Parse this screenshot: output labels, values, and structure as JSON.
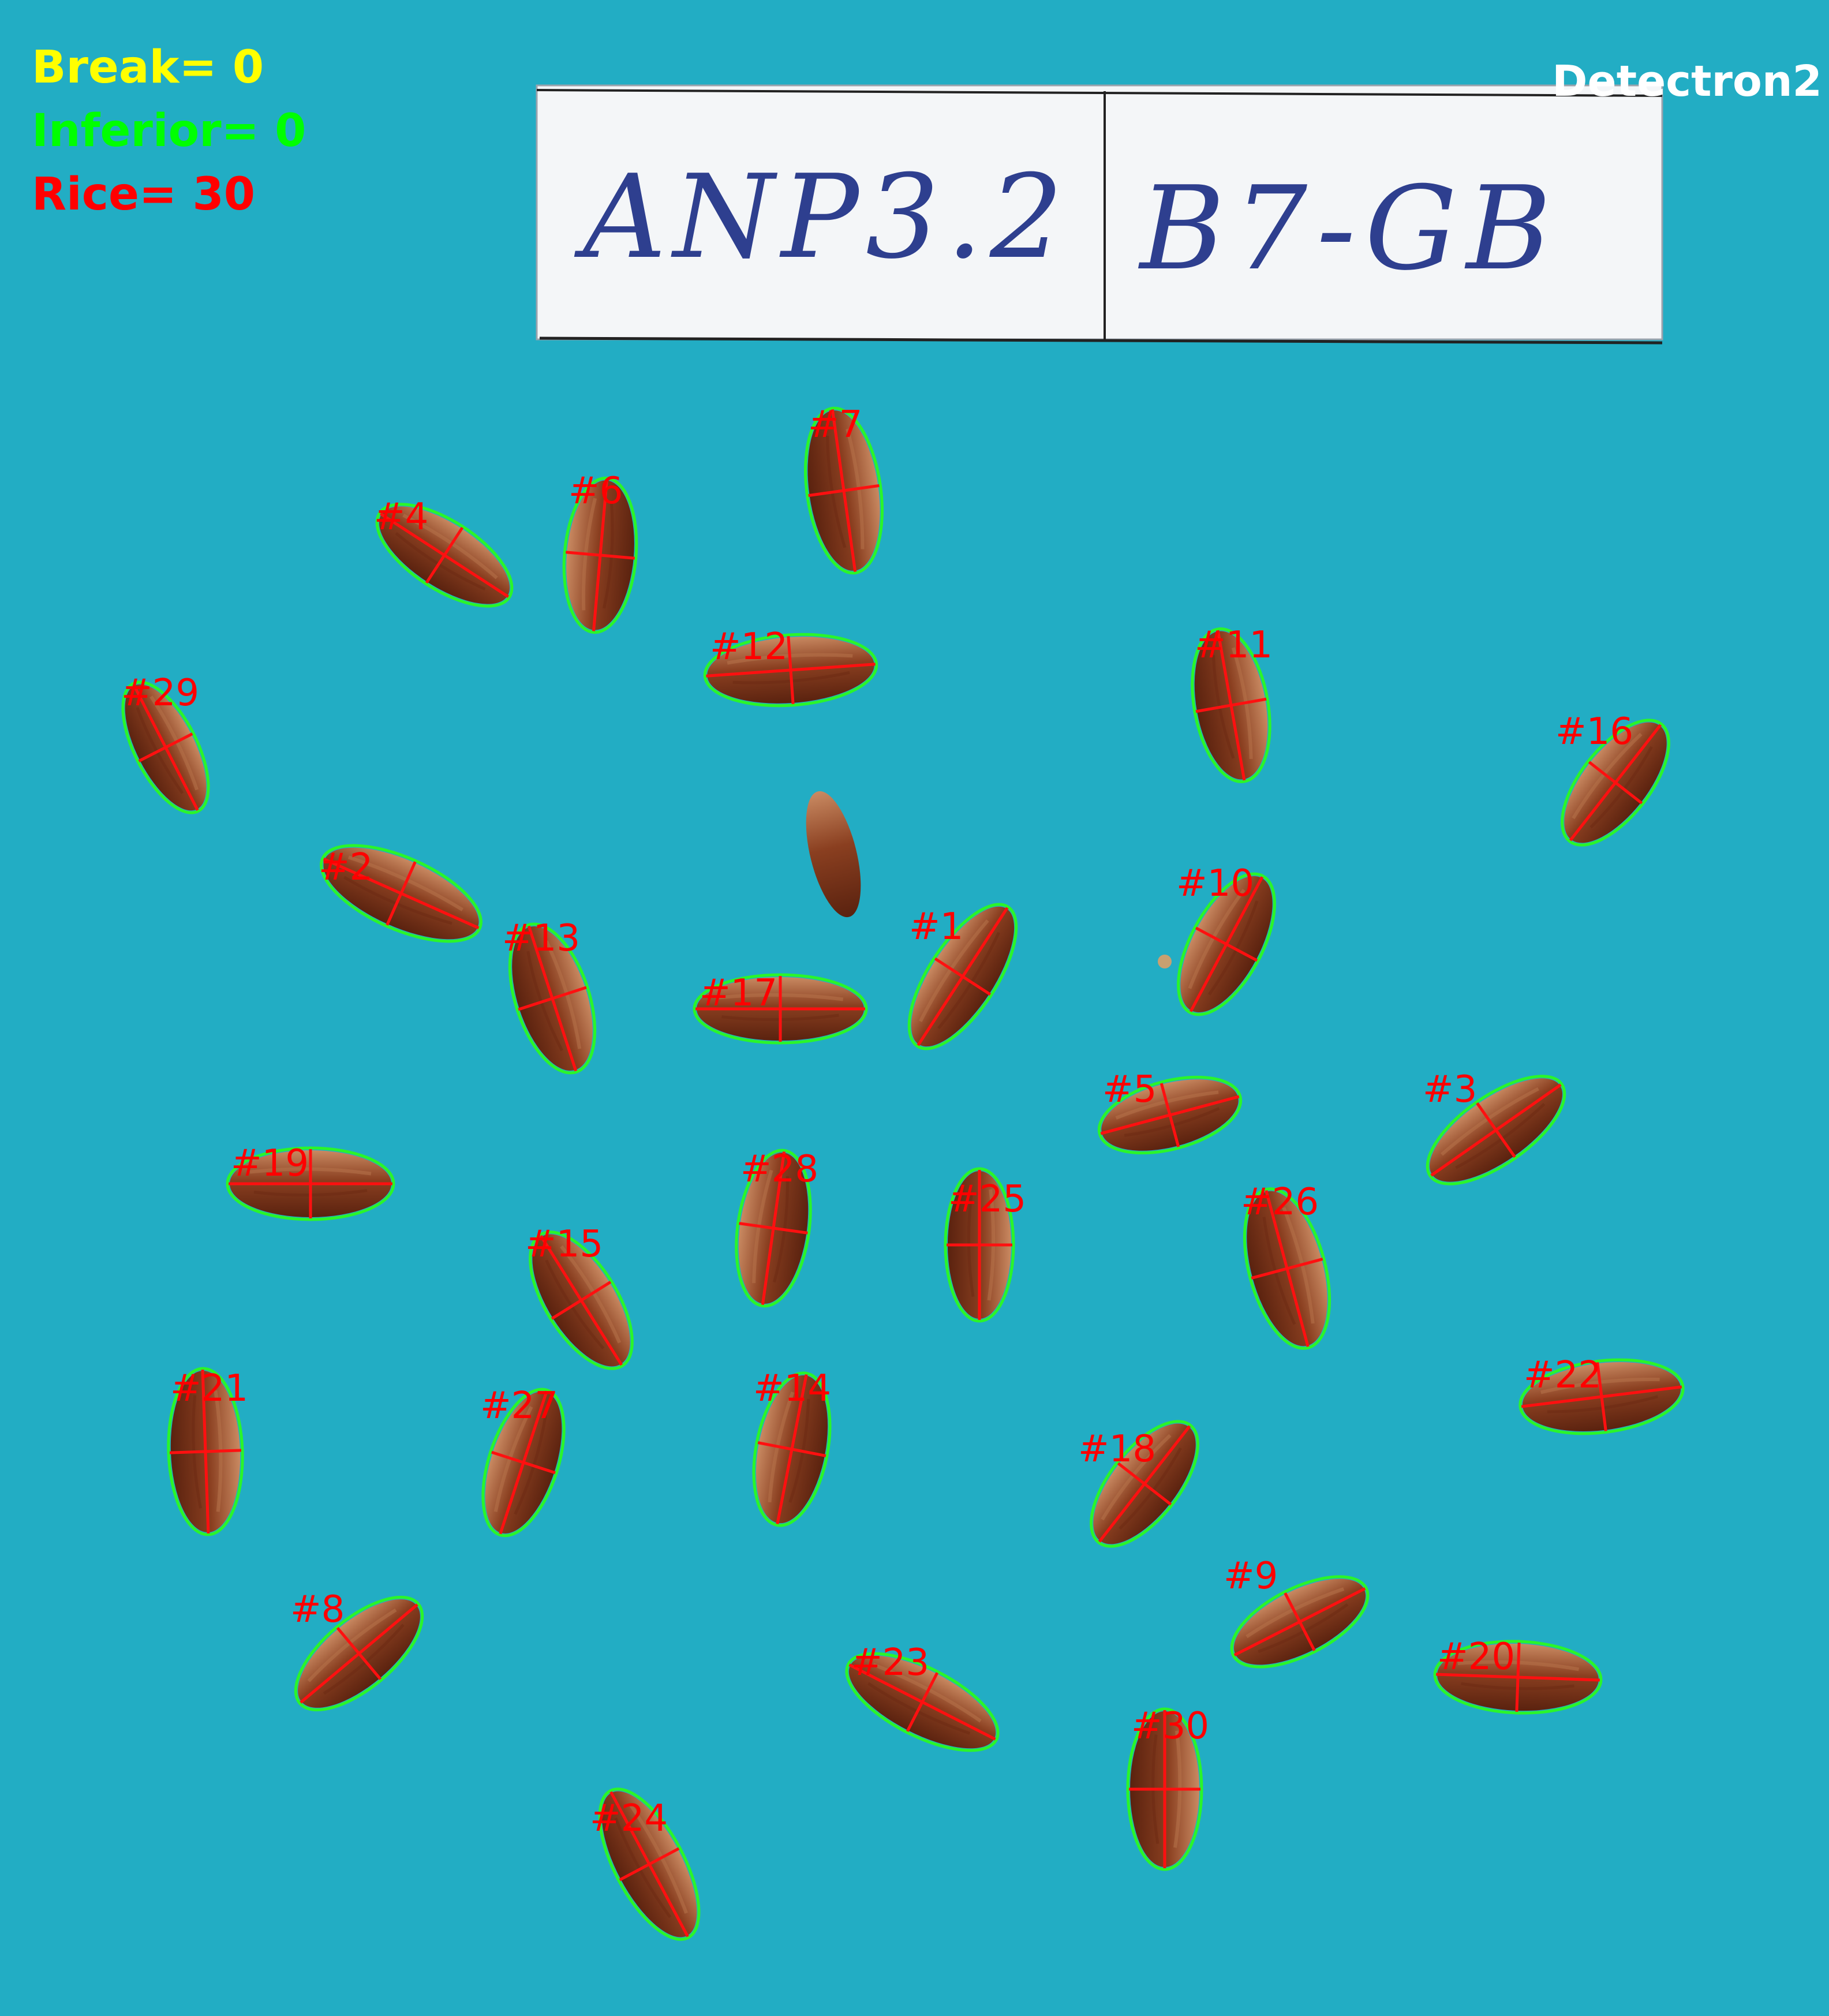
{
  "summary": {
    "break_label": "Break=",
    "break_count": "0",
    "inferior_label": "Inferior=",
    "inferior_count": "0",
    "rice_label": "Rice=",
    "rice_count": "30"
  },
  "model_name": "Detectron2",
  "sample_label": {
    "left_text": "ANP3.2",
    "right_text": "B7-GB"
  },
  "colors": {
    "background": "#22adc4",
    "break": "#ffff00",
    "inferior": "#00ff00",
    "rice": "#ff0000",
    "contour": "#2af52a",
    "axis": "#ff1010",
    "grain_light": "#b7724a",
    "grain_dark": "#6e2c14",
    "label_paper": "#f4f6f8",
    "ink": "#2e3f8f",
    "model_text": "#ffffff"
  },
  "grains": [
    {
      "id": "#1"
    },
    {
      "id": "#2"
    },
    {
      "id": "#3"
    },
    {
      "id": "#4"
    },
    {
      "id": "#5"
    },
    {
      "id": "#6"
    },
    {
      "id": "#7"
    },
    {
      "id": "#8"
    },
    {
      "id": "#9"
    },
    {
      "id": "#10"
    },
    {
      "id": "#11"
    },
    {
      "id": "#12"
    },
    {
      "id": "#13"
    },
    {
      "id": "#14"
    },
    {
      "id": "#15"
    },
    {
      "id": "#16"
    },
    {
      "id": "#17"
    },
    {
      "id": "#18"
    },
    {
      "id": "#19"
    },
    {
      "id": "#20"
    },
    {
      "id": "#21"
    },
    {
      "id": "#22"
    },
    {
      "id": "#23"
    },
    {
      "id": "#24"
    },
    {
      "id": "#25"
    },
    {
      "id": "#26"
    },
    {
      "id": "#27"
    },
    {
      "id": "#28"
    },
    {
      "id": "#29"
    },
    {
      "id": "#30"
    }
  ]
}
